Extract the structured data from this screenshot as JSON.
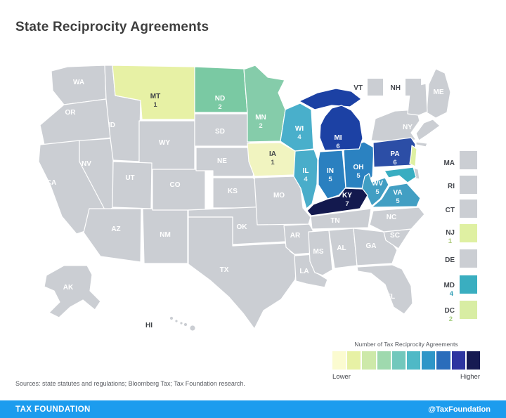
{
  "title": "State Reciprocity Agreements",
  "map": {
    "gray_fill": "#CBCED3",
    "states": [
      {
        "id": "WA",
        "label": "WA",
        "value": "",
        "fill": "#CBCED3",
        "label_color": "#FFFFFF"
      },
      {
        "id": "OR",
        "label": "OR",
        "value": "",
        "fill": "#CBCED3",
        "label_color": "#FFFFFF"
      },
      {
        "id": "CA",
        "label": "CA",
        "value": "",
        "fill": "#CBCED3",
        "label_color": "#FFFFFF"
      },
      {
        "id": "NV",
        "label": "NV",
        "value": "",
        "fill": "#CBCED3",
        "label_color": "#FFFFFF"
      },
      {
        "id": "ID",
        "label": "ID",
        "value": "",
        "fill": "#CBCED3",
        "label_color": "#FFFFFF"
      },
      {
        "id": "WY",
        "label": "WY",
        "value": "",
        "fill": "#CBCED3",
        "label_color": "#FFFFFF"
      },
      {
        "id": "UT",
        "label": "UT",
        "value": "",
        "fill": "#CBCED3",
        "label_color": "#FFFFFF"
      },
      {
        "id": "AZ",
        "label": "AZ",
        "value": "",
        "fill": "#CBCED3",
        "label_color": "#FFFFFF"
      },
      {
        "id": "NM",
        "label": "NM",
        "value": "",
        "fill": "#CBCED3",
        "label_color": "#FFFFFF"
      },
      {
        "id": "CO",
        "label": "CO",
        "value": "",
        "fill": "#CBCED3",
        "label_color": "#FFFFFF"
      },
      {
        "id": "SD",
        "label": "SD",
        "value": "",
        "fill": "#CBCED3",
        "label_color": "#FFFFFF"
      },
      {
        "id": "NE",
        "label": "NE",
        "value": "",
        "fill": "#CBCED3",
        "label_color": "#FFFFFF"
      },
      {
        "id": "KS",
        "label": "KS",
        "value": "",
        "fill": "#CBCED3",
        "label_color": "#FFFFFF"
      },
      {
        "id": "OK",
        "label": "OK",
        "value": "",
        "fill": "#CBCED3",
        "label_color": "#FFFFFF"
      },
      {
        "id": "TX",
        "label": "TX",
        "value": "",
        "fill": "#CBCED3",
        "label_color": "#FFFFFF"
      },
      {
        "id": "MO",
        "label": "MO",
        "value": "",
        "fill": "#CBCED3",
        "label_color": "#FFFFFF"
      },
      {
        "id": "AR",
        "label": "AR",
        "value": "",
        "fill": "#CBCED3",
        "label_color": "#FFFFFF"
      },
      {
        "id": "LA",
        "label": "LA",
        "value": "",
        "fill": "#CBCED3",
        "label_color": "#FFFFFF"
      },
      {
        "id": "MS",
        "label": "MS",
        "value": "",
        "fill": "#CBCED3",
        "label_color": "#FFFFFF"
      },
      {
        "id": "AL",
        "label": "AL",
        "value": "",
        "fill": "#CBCED3",
        "label_color": "#FFFFFF"
      },
      {
        "id": "GA",
        "label": "GA",
        "value": "",
        "fill": "#CBCED3",
        "label_color": "#FFFFFF"
      },
      {
        "id": "FL",
        "label": "FL",
        "value": "",
        "fill": "#CBCED3",
        "label_color": "#FFFFFF"
      },
      {
        "id": "SC",
        "label": "SC",
        "value": "",
        "fill": "#CBCED3",
        "label_color": "#FFFFFF"
      },
      {
        "id": "NC",
        "label": "NC",
        "value": "",
        "fill": "#CBCED3",
        "label_color": "#FFFFFF"
      },
      {
        "id": "TN",
        "label": "TN",
        "value": "",
        "fill": "#CBCED3",
        "label_color": "#FFFFFF"
      },
      {
        "id": "NY",
        "label": "NY",
        "value": "",
        "fill": "#CBCED3",
        "label_color": "#FFFFFF"
      },
      {
        "id": "ME",
        "label": "ME",
        "value": "",
        "fill": "#CBCED3",
        "label_color": "#FFFFFF"
      },
      {
        "id": "AK",
        "label": "AK",
        "value": "",
        "fill": "#CBCED3",
        "label_color": "#FFFFFF"
      },
      {
        "id": "HI",
        "label": "HI",
        "value": "",
        "fill": "#CBCED3",
        "label_color": "#3F4347"
      },
      {
        "id": "VTNH_SHAPE",
        "label": "",
        "value": "",
        "fill": "#CBCED3",
        "label_color": "#FFFFFF"
      },
      {
        "id": "NEWENG_SHAPE",
        "label": "",
        "value": "",
        "fill": "#CBCED3",
        "label_color": "#FFFFFF"
      },
      {
        "id": "LI_SHAPE",
        "label": "",
        "value": "",
        "fill": "#CBCED3",
        "label_color": "#FFFFFF"
      },
      {
        "id": "DE_MAP",
        "label": "",
        "value": "",
        "fill": "#CBCED3",
        "label_color": "#FFFFFF"
      },
      {
        "id": "MT",
        "label": "MT",
        "value": "1",
        "fill": "#E7F1A5",
        "label_color": "#3F4347"
      },
      {
        "id": "ND",
        "label": "ND",
        "value": "2",
        "fill": "#7AC9A3",
        "label_color": "#FFFFFF"
      },
      {
        "id": "MN",
        "label": "MN",
        "value": "2",
        "fill": "#85CCAA",
        "label_color": "#FFFFFF"
      },
      {
        "id": "WI",
        "label": "WI",
        "value": "4",
        "fill": "#49AFCB",
        "label_color": "#FFFFFF"
      },
      {
        "id": "IA",
        "label": "IA",
        "value": "1",
        "fill": "#F1F4C0",
        "label_color": "#3F4347"
      },
      {
        "id": "IL",
        "label": "IL",
        "value": "4",
        "fill": "#49ADCA",
        "label_color": "#FFFFFF"
      },
      {
        "id": "IN",
        "label": "IN",
        "value": "5",
        "fill": "#2A80C0",
        "label_color": "#FFFFFF"
      },
      {
        "id": "OH",
        "label": "OH",
        "value": "5",
        "fill": "#2B82C1",
        "label_color": "#FFFFFF"
      },
      {
        "id": "MI_UP",
        "label": "",
        "value": "",
        "fill": "#1C41A4",
        "label_color": "#FFFFFF"
      },
      {
        "id": "MI",
        "label": "MI",
        "value": "6",
        "fill": "#1C41A4",
        "label_color": "#FFFFFF"
      },
      {
        "id": "PA",
        "label": "PA",
        "value": "6",
        "fill": "#2C4EA6",
        "label_color": "#FFFFFF"
      },
      {
        "id": "WV",
        "label": "WV",
        "value": "5",
        "fill": "#419EC3",
        "label_color": "#FFFFFF"
      },
      {
        "id": "VA",
        "label": "VA",
        "value": "5",
        "fill": "#429FC3",
        "label_color": "#FFFFFF"
      },
      {
        "id": "KY",
        "label": "KY",
        "value": "7",
        "fill": "#13194E",
        "label_color": "#FFFFFF"
      },
      {
        "id": "NJ_MAP",
        "label": "",
        "value": "",
        "fill": "#DFF0A2",
        "label_color": "#FFFFFF"
      },
      {
        "id": "MD_MAP",
        "label": "",
        "value": "",
        "fill": "#38ADC1",
        "label_color": "#FFFFFF"
      }
    ]
  },
  "side_panel": {
    "label_color": "#45484E",
    "items": [
      {
        "id": "VT",
        "label": "VT",
        "value": "",
        "fill": "#CBCED3",
        "value_color": "#45484E"
      },
      {
        "id": "NH",
        "label": "NH",
        "value": "",
        "fill": "#CBCED3",
        "value_color": "#45484E"
      },
      {
        "id": "MA",
        "label": "MA",
        "value": "",
        "fill": "#CBCED3",
        "value_color": "#45484E"
      },
      {
        "id": "RI",
        "label": "RI",
        "value": "",
        "fill": "#CBCED3",
        "value_color": "#45484E"
      },
      {
        "id": "CT",
        "label": "CT",
        "value": "",
        "fill": "#CBCED3",
        "value_color": "#45484E"
      },
      {
        "id": "NJ",
        "label": "NJ",
        "value": "1",
        "fill": "#DFF0A2",
        "value_color": "#ABC878"
      },
      {
        "id": "DE",
        "label": "DE",
        "value": "",
        "fill": "#CBCED3",
        "value_color": "#45484E"
      },
      {
        "id": "MD",
        "label": "MD",
        "value": "4",
        "fill": "#3AAEC0",
        "value_color": "#2F9DB5"
      },
      {
        "id": "DC",
        "label": "DC",
        "value": "2",
        "fill": "#D8EDA3",
        "value_color": "#A4CD7F"
      }
    ]
  },
  "legend": {
    "title": "Number of Tax Reciprocity Agreements",
    "lower_label": "Lower",
    "higher_label": "Higher",
    "colors": [
      "#FBFBD0",
      "#E7F1A5",
      "#CDE9A9",
      "#9FD9AE",
      "#72C8BC",
      "#4FB9C6",
      "#2E96C8",
      "#2A6DBB",
      "#2D35A0",
      "#161A52"
    ]
  },
  "source_note": "Sources: state statutes and regulations; Bloomberg Tax; Tax Foundation research.",
  "footer": {
    "brand": "TAX FOUNDATION",
    "handle": "@TaxFoundation",
    "bar_color": "#1C9CEE"
  },
  "chart_data": {
    "type": "choropleth",
    "title": "State Reciprocity Agreements",
    "value_label": "Number of Tax Reciprocity Agreements",
    "values": {
      "MT": 1,
      "ND": 2,
      "MN": 2,
      "IA": 1,
      "WI": 4,
      "IL": 4,
      "IN": 5,
      "OH": 5,
      "MI": 6,
      "PA": 6,
      "KY": 7,
      "WV": 5,
      "VA": 5,
      "NJ": 1,
      "MD": 4,
      "DC": 2
    },
    "states_without_agreements": [
      "WA",
      "OR",
      "CA",
      "NV",
      "ID",
      "WY",
      "UT",
      "AZ",
      "NM",
      "CO",
      "SD",
      "NE",
      "KS",
      "OK",
      "TX",
      "MO",
      "AR",
      "LA",
      "MS",
      "AL",
      "GA",
      "FL",
      "SC",
      "NC",
      "TN",
      "NY",
      "ME",
      "VT",
      "NH",
      "MA",
      "RI",
      "CT",
      "DE",
      "AK",
      "HI"
    ],
    "scale": {
      "lower_label": "Lower",
      "higher_label": "Higher",
      "colors": [
        "#FBFBD0",
        "#E7F1A5",
        "#CDE9A9",
        "#9FD9AE",
        "#72C8BC",
        "#4FB9C6",
        "#2E96C8",
        "#2A6DBB",
        "#2D35A0",
        "#161A52"
      ]
    },
    "legend_position": "bottom-right"
  }
}
